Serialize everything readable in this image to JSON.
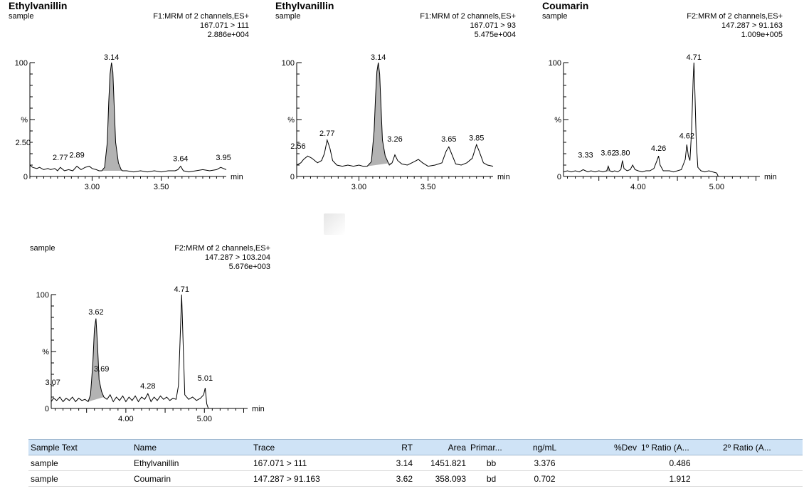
{
  "panels": [
    {
      "title": "Ethylvanillin",
      "sample": "sample",
      "header": [
        "F1:MRM of 2 channels,ES+",
        "167.071 > 111",
        "2.886e+004"
      ],
      "y_max_label": "100",
      "y_mid_label": "%",
      "y_min_label": "0",
      "x_unit": "min"
    },
    {
      "title": "Ethylvanillin",
      "sample": "sample",
      "header": [
        "F1:MRM of 2 channels,ES+",
        "167.071 > 93",
        "5.475e+004"
      ],
      "y_max_label": "100",
      "y_mid_label": "%",
      "y_min_label": "0",
      "x_unit": "min"
    },
    {
      "title": "Coumarin",
      "sample": "sample",
      "header": [
        "F2:MRM of 2 channels,ES+",
        "147.287 > 91.163",
        "1.009e+005"
      ],
      "y_max_label": "100",
      "y_mid_label": "%",
      "y_min_label": "0",
      "x_unit": "min"
    },
    {
      "title": "",
      "sample": "sample",
      "header": [
        "F2:MRM of 2 channels,ES+",
        "147.287 > 103.204",
        "5.676e+003"
      ],
      "y_max_label": "100",
      "y_mid_label": "%",
      "y_min_label": "0",
      "x_unit": "min"
    }
  ],
  "chart_data": [
    {
      "type": "line",
      "title": "Ethylvanillin",
      "xlabel": "min",
      "ylabel": "%",
      "xlim": [
        2.55,
        3.97
      ],
      "ylim": [
        0,
        100
      ],
      "xticks": [
        "3.00",
        "3.50"
      ],
      "shaded_peak": [
        3.05,
        3.22
      ],
      "points": [
        [
          2.55,
          10
        ],
        [
          2.57,
          8
        ],
        [
          2.6,
          7
        ],
        [
          2.62,
          8
        ],
        [
          2.65,
          6
        ],
        [
          2.68,
          7
        ],
        [
          2.7,
          6
        ],
        [
          2.73,
          7
        ],
        [
          2.75,
          5
        ],
        [
          2.77,
          8
        ],
        [
          2.8,
          5
        ],
        [
          2.83,
          6
        ],
        [
          2.86,
          5
        ],
        [
          2.89,
          9
        ],
        [
          2.92,
          6
        ],
        [
          2.95,
          8
        ],
        [
          2.98,
          9
        ],
        [
          3.0,
          7
        ],
        [
          3.03,
          6
        ],
        [
          3.05,
          5
        ],
        [
          3.07,
          5
        ],
        [
          3.09,
          8
        ],
        [
          3.11,
          30
        ],
        [
          3.12,
          65
        ],
        [
          3.13,
          90
        ],
        [
          3.14,
          100
        ],
        [
          3.15,
          92
        ],
        [
          3.16,
          60
        ],
        [
          3.17,
          30
        ],
        [
          3.19,
          12
        ],
        [
          3.21,
          6
        ],
        [
          3.22,
          5
        ],
        [
          3.25,
          5
        ],
        [
          3.3,
          4
        ],
        [
          3.35,
          5
        ],
        [
          3.4,
          4
        ],
        [
          3.45,
          5
        ],
        [
          3.5,
          4
        ],
        [
          3.55,
          5
        ],
        [
          3.6,
          5
        ],
        [
          3.62,
          6
        ],
        [
          3.64,
          9
        ],
        [
          3.66,
          5
        ],
        [
          3.7,
          4
        ],
        [
          3.75,
          5
        ],
        [
          3.8,
          6
        ],
        [
          3.85,
          5
        ],
        [
          3.9,
          6
        ],
        [
          3.93,
          8
        ],
        [
          3.95,
          7
        ],
        [
          3.97,
          6
        ]
      ],
      "peak_labels": [
        {
          "x": 2.5,
          "y": 25,
          "label": "2.50"
        },
        {
          "x": 2.77,
          "y": 12,
          "label": "2.77"
        },
        {
          "x": 2.89,
          "y": 14,
          "label": "2.89"
        },
        {
          "x": 3.14,
          "y": 100,
          "label": "3.14"
        },
        {
          "x": 3.64,
          "y": 11,
          "label": "3.64"
        },
        {
          "x": 3.95,
          "y": 12,
          "label": "3.95"
        }
      ]
    },
    {
      "type": "line",
      "title": "Ethylvanillin",
      "xlabel": "min",
      "ylabel": "%",
      "xlim": [
        2.55,
        3.97
      ],
      "ylim": [
        0,
        100
      ],
      "xticks": [
        "3.00",
        "3.50"
      ],
      "shaded_peak": [
        3.05,
        3.24
      ],
      "points": [
        [
          2.55,
          10
        ],
        [
          2.58,
          12
        ],
        [
          2.6,
          15
        ],
        [
          2.63,
          18
        ],
        [
          2.66,
          16
        ],
        [
          2.7,
          12
        ],
        [
          2.73,
          14
        ],
        [
          2.75,
          20
        ],
        [
          2.77,
          32
        ],
        [
          2.79,
          25
        ],
        [
          2.81,
          14
        ],
        [
          2.84,
          10
        ],
        [
          2.88,
          9
        ],
        [
          2.92,
          10
        ],
        [
          2.96,
          9
        ],
        [
          3.0,
          10
        ],
        [
          3.03,
          9
        ],
        [
          3.06,
          9
        ],
        [
          3.09,
          13
        ],
        [
          3.11,
          40
        ],
        [
          3.12,
          70
        ],
        [
          3.13,
          92
        ],
        [
          3.14,
          100
        ],
        [
          3.15,
          90
        ],
        [
          3.16,
          60
        ],
        [
          3.17,
          32
        ],
        [
          3.19,
          18
        ],
        [
          3.22,
          10
        ],
        [
          3.24,
          12
        ],
        [
          3.26,
          19
        ],
        [
          3.28,
          14
        ],
        [
          3.31,
          11
        ],
        [
          3.35,
          10
        ],
        [
          3.4,
          13
        ],
        [
          3.43,
          15
        ],
        [
          3.46,
          12
        ],
        [
          3.5,
          9
        ],
        [
          3.55,
          10
        ],
        [
          3.6,
          12
        ],
        [
          3.63,
          22
        ],
        [
          3.65,
          26
        ],
        [
          3.67,
          20
        ],
        [
          3.7,
          11
        ],
        [
          3.74,
          10
        ],
        [
          3.78,
          12
        ],
        [
          3.82,
          16
        ],
        [
          3.85,
          28
        ],
        [
          3.87,
          22
        ],
        [
          3.9,
          12
        ],
        [
          3.93,
          10
        ],
        [
          3.97,
          9
        ]
      ],
      "peak_labels": [
        {
          "x": 2.56,
          "y": 22,
          "label": "2.56"
        },
        {
          "x": 2.77,
          "y": 33,
          "label": "2.77"
        },
        {
          "x": 3.14,
          "y": 100,
          "label": "3.14"
        },
        {
          "x": 3.26,
          "y": 28,
          "label": "3.26"
        },
        {
          "x": 3.65,
          "y": 28,
          "label": "3.65"
        },
        {
          "x": 3.85,
          "y": 29,
          "label": "3.85"
        }
      ]
    },
    {
      "type": "line",
      "title": "Coumarin",
      "xlabel": "min",
      "ylabel": "%",
      "xlim": [
        3.05,
        5.55
      ],
      "ylim": [
        0,
        100
      ],
      "xticks": [
        "4.00",
        "5.00"
      ],
      "shaded_peak": [
        3.55,
        3.7
      ],
      "points": [
        [
          3.05,
          4
        ],
        [
          3.1,
          5
        ],
        [
          3.15,
          4
        ],
        [
          3.2,
          5
        ],
        [
          3.25,
          4
        ],
        [
          3.3,
          6
        ],
        [
          3.33,
          5
        ],
        [
          3.36,
          4
        ],
        [
          3.4,
          5
        ],
        [
          3.45,
          4
        ],
        [
          3.5,
          5
        ],
        [
          3.55,
          4
        ],
        [
          3.6,
          5
        ],
        [
          3.62,
          9
        ],
        [
          3.64,
          5
        ],
        [
          3.67,
          4
        ],
        [
          3.7,
          5
        ],
        [
          3.74,
          4
        ],
        [
          3.78,
          6
        ],
        [
          3.8,
          14
        ],
        [
          3.82,
          7
        ],
        [
          3.86,
          5
        ],
        [
          3.9,
          6
        ],
        [
          3.93,
          10
        ],
        [
          3.96,
          6
        ],
        [
          4.0,
          5
        ],
        [
          4.05,
          4
        ],
        [
          4.1,
          5
        ],
        [
          4.15,
          5
        ],
        [
          4.2,
          7
        ],
        [
          4.24,
          14
        ],
        [
          4.26,
          18
        ],
        [
          4.28,
          10
        ],
        [
          4.32,
          5
        ],
        [
          4.4,
          5
        ],
        [
          4.45,
          4
        ],
        [
          4.5,
          5
        ],
        [
          4.55,
          6
        ],
        [
          4.6,
          15
        ],
        [
          4.62,
          28
        ],
        [
          4.64,
          18
        ],
        [
          4.66,
          14
        ],
        [
          4.68,
          40
        ],
        [
          4.7,
          85
        ],
        [
          4.71,
          100
        ],
        [
          4.72,
          80
        ],
        [
          4.74,
          30
        ],
        [
          4.76,
          8
        ],
        [
          4.8,
          5
        ],
        [
          4.85,
          4
        ],
        [
          4.9,
          5
        ],
        [
          4.95,
          4
        ],
        [
          5.0,
          3
        ],
        [
          5.02,
          0
        ],
        [
          5.1,
          0
        ],
        [
          5.3,
          0
        ],
        [
          5.55,
          0
        ]
      ],
      "peak_labels": [
        {
          "x": 3.33,
          "y": 14,
          "label": "3.33"
        },
        {
          "x": 3.62,
          "y": 16,
          "label": "3.62"
        },
        {
          "x": 3.8,
          "y": 16,
          "label": "3.80"
        },
        {
          "x": 4.26,
          "y": 20,
          "label": "4.26"
        },
        {
          "x": 4.62,
          "y": 31,
          "label": "4.62"
        },
        {
          "x": 4.71,
          "y": 100,
          "label": "4.71"
        }
      ]
    },
    {
      "type": "line",
      "title": "",
      "xlabel": "min",
      "ylabel": "%",
      "xlim": [
        3.05,
        5.55
      ],
      "ylim": [
        0,
        100
      ],
      "xticks": [
        "4.00",
        "5.00"
      ],
      "shaded_peak": [
        3.52,
        3.72
      ],
      "points": [
        [
          3.05,
          6
        ],
        [
          3.08,
          9
        ],
        [
          3.12,
          7
        ],
        [
          3.16,
          10
        ],
        [
          3.2,
          6
        ],
        [
          3.24,
          9
        ],
        [
          3.28,
          7
        ],
        [
          3.32,
          10
        ],
        [
          3.36,
          6
        ],
        [
          3.4,
          9
        ],
        [
          3.44,
          7
        ],
        [
          3.48,
          8
        ],
        [
          3.52,
          6
        ],
        [
          3.55,
          12
        ],
        [
          3.58,
          40
        ],
        [
          3.6,
          70
        ],
        [
          3.62,
          79
        ],
        [
          3.64,
          55
        ],
        [
          3.66,
          25
        ],
        [
          3.69,
          15
        ],
        [
          3.72,
          10
        ],
        [
          3.76,
          8
        ],
        [
          3.8,
          12
        ],
        [
          3.84,
          6
        ],
        [
          3.88,
          10
        ],
        [
          3.92,
          7
        ],
        [
          3.96,
          11
        ],
        [
          4.0,
          6
        ],
        [
          4.04,
          10
        ],
        [
          4.08,
          7
        ],
        [
          4.12,
          11
        ],
        [
          4.16,
          6
        ],
        [
          4.2,
          10
        ],
        [
          4.24,
          8
        ],
        [
          4.28,
          13
        ],
        [
          4.32,
          6
        ],
        [
          4.36,
          10
        ],
        [
          4.4,
          7
        ],
        [
          4.44,
          11
        ],
        [
          4.48,
          8
        ],
        [
          4.52,
          10
        ],
        [
          4.56,
          7
        ],
        [
          4.6,
          9
        ],
        [
          4.64,
          8
        ],
        [
          4.67,
          20
        ],
        [
          4.69,
          60
        ],
        [
          4.71,
          100
        ],
        [
          4.73,
          55
        ],
        [
          4.75,
          12
        ],
        [
          4.8,
          8
        ],
        [
          4.85,
          10
        ],
        [
          4.9,
          7
        ],
        [
          4.95,
          9
        ],
        [
          4.99,
          12
        ],
        [
          5.01,
          18
        ],
        [
          5.03,
          4
        ],
        [
          5.05,
          0
        ],
        [
          5.2,
          0
        ],
        [
          5.55,
          0
        ]
      ],
      "peak_labels": [
        {
          "x": 3.07,
          "y": 18,
          "label": "3.07"
        },
        {
          "x": 3.62,
          "y": 80,
          "label": "3.62"
        },
        {
          "x": 3.69,
          "y": 30,
          "label": "3.69"
        },
        {
          "x": 4.28,
          "y": 15,
          "label": "4.28"
        },
        {
          "x": 4.71,
          "y": 100,
          "label": "4.71"
        },
        {
          "x": 5.01,
          "y": 22,
          "label": "5.01"
        }
      ]
    }
  ],
  "table": {
    "headers": [
      "Sample Text",
      "Name",
      "Trace",
      "RT",
      "Area",
      "Primar...",
      "ng/mL",
      "%Dev",
      "1º Ratio (A...",
      "2º Ratio (A..."
    ],
    "rows": [
      [
        "sample",
        "Ethylvanillin",
        "167.071 > 111",
        "3.14",
        "1451.821",
        "bb",
        "3.376",
        "",
        "0.486",
        ""
      ],
      [
        "sample",
        "Coumarin",
        "147.287 > 91.163",
        "3.62",
        "358.093",
        "bd",
        "0.702",
        "",
        "1.912",
        ""
      ]
    ]
  },
  "colors": {
    "trace": "#000000",
    "peak_fill": "#b3b3b3",
    "table_header": "#cfe3f6"
  }
}
